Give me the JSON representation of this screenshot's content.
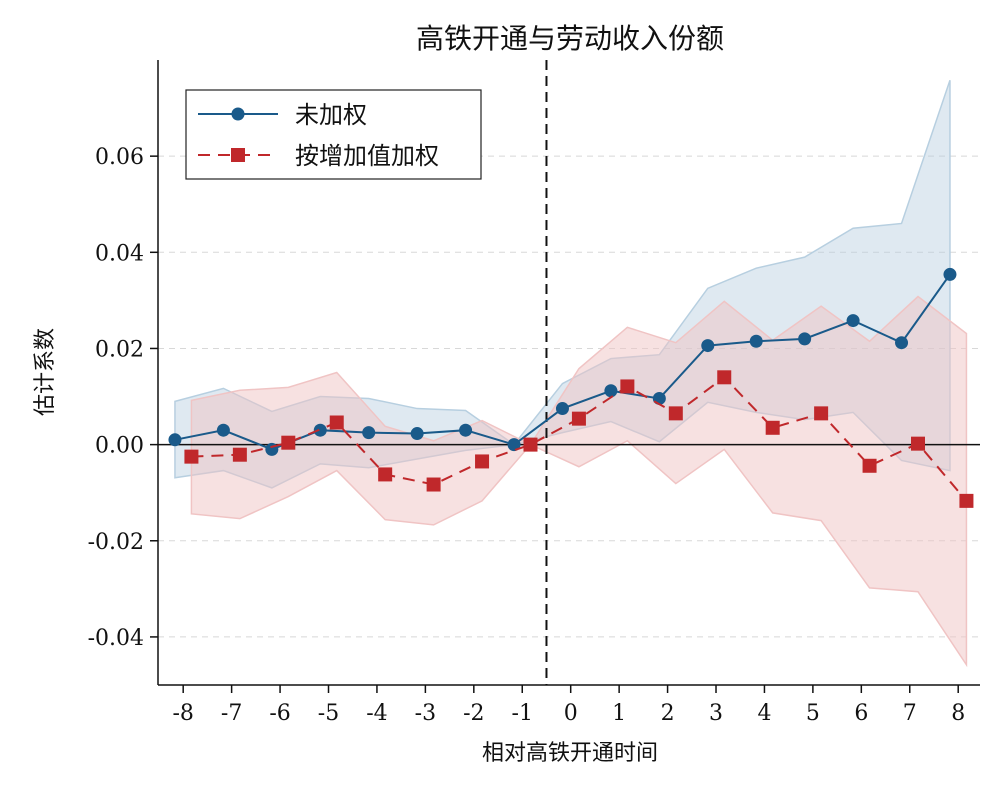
{
  "chart_data": {
    "type": "line",
    "title": "高铁开通与劳动收入份额",
    "xlabel": "相对高铁开通时间",
    "ylabel": "估计系数",
    "x": [
      -8,
      -7,
      -6,
      -5,
      -4,
      -3,
      -2,
      -1,
      0,
      1,
      2,
      3,
      4,
      5,
      6,
      7,
      8
    ],
    "xticks": [
      "-8",
      "-7",
      "-6",
      "-5",
      "-4",
      "-3",
      "-2",
      "-1",
      "0",
      "1",
      "2",
      "3",
      "4",
      "5",
      "6",
      "7",
      "8"
    ],
    "yticks": [
      -0.04,
      -0.02,
      0.0,
      0.02,
      0.04,
      0.06
    ],
    "ytick_labels": [
      "-0.04",
      "-0.02",
      "0.00",
      "0.02",
      "0.04",
      "0.06"
    ],
    "xlim": [
      -8.52,
      8.45
    ],
    "ylim": [
      -0.05,
      0.08
    ],
    "grid": "horizontal dashed",
    "reference_vline": -0.5,
    "reference_hline": 0,
    "legend_position": "top-left",
    "series": [
      {
        "name": "未加权",
        "color": "#1a5a8a",
        "band_color": "#b7cfe0",
        "marker": "circle",
        "linestyle": "solid",
        "values": [
          0.001,
          0.003,
          -0.001,
          0.003,
          0.0025,
          0.0023,
          0.003,
          0,
          0.0075,
          0.0112,
          0.0096,
          0.0206,
          0.0215,
          0.022,
          0.0258,
          0.0212,
          0.0354
        ],
        "ci_upper": [
          0.009,
          0.0117,
          0.0069,
          0.01,
          0.0096,
          0.0075,
          0.0071,
          0,
          0.0127,
          0.0179,
          0.0187,
          0.0325,
          0.0367,
          0.039,
          0.045,
          0.046,
          0.0758
        ],
        "ci_lower": [
          -0.0069,
          -0.0054,
          -0.009,
          -0.004,
          -0.0048,
          -0.003,
          -0.0012,
          0,
          0.0025,
          0.0048,
          0.0006,
          0.0088,
          0.0067,
          0.0052,
          0.0067,
          -0.0033,
          -0.0054
        ]
      },
      {
        "name": "按增加值加权",
        "color": "#c0282b",
        "band_color": "#f0c4c4",
        "marker": "square",
        "linestyle": "dashed",
        "values": [
          -0.0025,
          -0.0021,
          0.0004,
          0.0046,
          -0.0062,
          -0.0083,
          -0.0035,
          0,
          0.0054,
          0.0121,
          0.0065,
          0.014,
          0.0035,
          0.0065,
          -0.0044,
          0.0002,
          -0.0117
        ],
        "ci_upper": [
          0.0092,
          0.0113,
          0.0119,
          0.015,
          0.0038,
          0.0008,
          0.005,
          0,
          0.0158,
          0.0244,
          0.0212,
          0.0298,
          0.0217,
          0.0288,
          0.0215,
          0.0308,
          0.0231
        ],
        "ci_lower": [
          -0.0144,
          -0.0154,
          -0.0108,
          -0.0054,
          -0.0156,
          -0.0167,
          -0.0117,
          0,
          -0.0046,
          0.0008,
          -0.0081,
          -0.001,
          -0.0142,
          -0.0158,
          -0.0298,
          -0.0306,
          -0.0458
        ]
      }
    ]
  }
}
